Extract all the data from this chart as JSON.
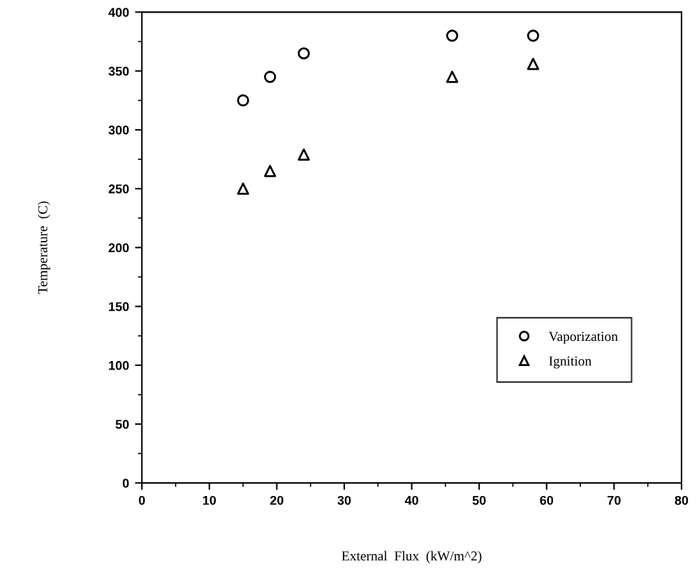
{
  "chart_data": {
    "type": "scatter",
    "xlabel": "External  Flux  (kW/m^2)",
    "ylabel": "Temperature  (C)",
    "xlim": [
      0,
      80
    ],
    "xticks": [
      0,
      10,
      20,
      30,
      40,
      50,
      60,
      70,
      80
    ],
    "ylim": [
      0,
      400
    ],
    "yticks": [
      0,
      50,
      100,
      150,
      200,
      250,
      300,
      350,
      400
    ],
    "grid": false,
    "legend": "bottom right",
    "series": [
      {
        "name": "Vaporization",
        "color": "#000000",
        "marker": "circle",
        "x": [
          15,
          19,
          24,
          46,
          58
        ],
        "values": [
          325,
          345,
          365,
          380,
          380
        ]
      },
      {
        "name": "Ignition",
        "color": "#000000",
        "marker": "triangle",
        "x": [
          15,
          19,
          24,
          46,
          58
        ],
        "values": [
          250,
          265,
          279,
          345,
          356
        ]
      }
    ]
  }
}
